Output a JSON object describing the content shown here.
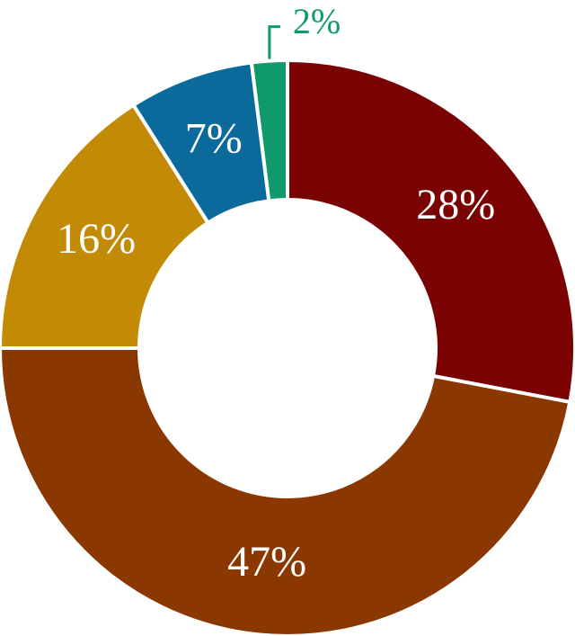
{
  "chart_data": {
    "type": "donut",
    "values": [
      28,
      47,
      16,
      7,
      2
    ],
    "value_labels": [
      "28%",
      "47%",
      "16%",
      "7%",
      "2%"
    ],
    "colors": [
      "#7a0202",
      "#8a3800",
      "#c28a05",
      "#0b6a9c",
      "#0f9a6b"
    ]
  }
}
